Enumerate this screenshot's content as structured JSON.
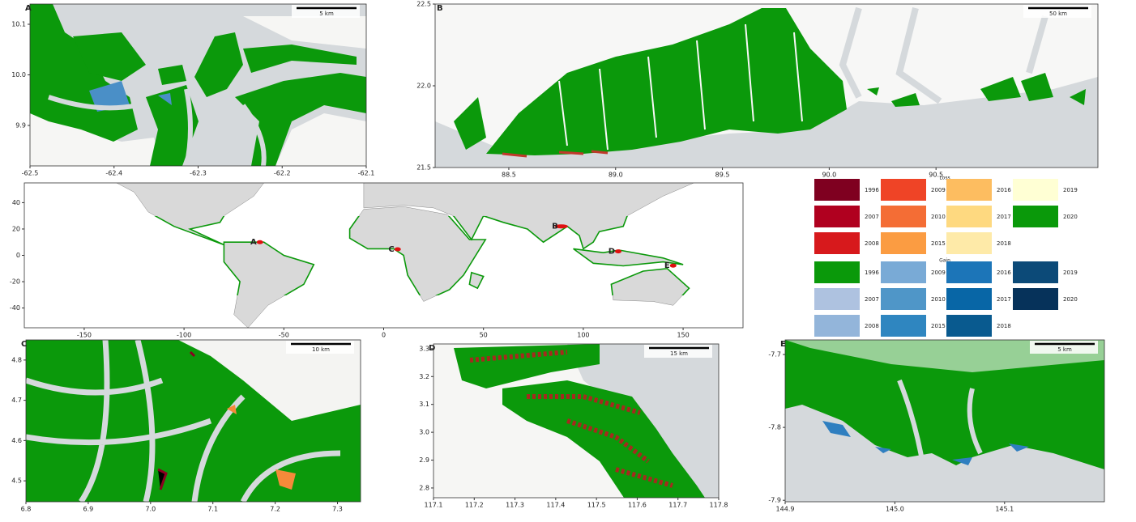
{
  "panels": [
    {
      "label": "A",
      "scale_bar": "5 km",
      "xlim": [
        -62.5,
        -62.1
      ],
      "ylim": [
        9.82,
        10.14
      ],
      "xticks": [
        -62.5,
        -62.4,
        -62.3,
        -62.2,
        -62.1
      ],
      "yticks": [
        10.1,
        {
          "value": 10.0,
          "label": "10.0"
        },
        9.9
      ]
    },
    {
      "label": "B",
      "scale_bar": "50 km",
      "xlim": [
        88.155,
        91.258
      ],
      "ylim": [
        21.5,
        22.5
      ],
      "xticks": [
        88.5,
        {
          "value": 89.0,
          "label": "89.0"
        },
        89.5,
        {
          "value": 90.0,
          "label": "90.0"
        },
        90.5
      ],
      "yticks": [
        22.5,
        {
          "value": 22.0,
          "label": "22.0"
        },
        21.5
      ]
    },
    {
      "label": "C",
      "scale_bar": "10 km",
      "xlim": [
        6.8,
        7.337
      ],
      "ylim": [
        4.448,
        4.85
      ],
      "xticks": [
        6.8,
        6.9,
        {
          "value": 7.0,
          "label": "7.0"
        },
        7.1,
        7.2,
        7.3
      ],
      "yticks": [
        4.8,
        4.7,
        4.6,
        4.5
      ]
    },
    {
      "label": "D",
      "scale_bar": "15 km",
      "xlim": [
        117.1,
        117.8
      ],
      "ylim": [
        2.765,
        3.317
      ],
      "xticks": [
        117.1,
        117.2,
        117.3,
        117.4,
        117.5,
        117.6,
        117.7,
        117.8
      ],
      "yticks": [
        3.3,
        3.2,
        3.1,
        {
          "value": 3.0,
          "label": "3.0"
        },
        2.9,
        2.8
      ]
    },
    {
      "label": "E",
      "scale_bar": "5 km",
      "xlim": [
        144.9,
        145.191
      ],
      "ylim": [
        -7.902,
        -7.68
      ],
      "xticks": [
        144.9,
        {
          "value": 145.0,
          "label": "145.0"
        },
        145.1
      ],
      "yticks": [
        -7.7,
        -7.8,
        -7.9
      ]
    }
  ],
  "world": {
    "xlim": [
      -180,
      180
    ],
    "ylim": [
      -55,
      55
    ],
    "xticks": [
      -150,
      -100,
      -50,
      0,
      50,
      100,
      150
    ],
    "yticks": [
      40,
      20,
      0,
      -20,
      -40
    ],
    "markers": [
      "A",
      "B",
      "C",
      "D",
      "E"
    ]
  },
  "legend": {
    "loss": {
      "title": "Loss",
      "items": [
        {
          "year": 1996,
          "color": "#7f0020"
        },
        {
          "year": 2007,
          "color": "#b0001f"
        },
        {
          "year": 2008,
          "color": "#d7191c"
        },
        {
          "year": 2009,
          "color": "#ef4426"
        },
        {
          "year": 2010,
          "color": "#f46d35"
        },
        {
          "year": 2015,
          "color": "#fb9c42"
        },
        {
          "year": 2016,
          "color": "#fdbd60"
        },
        {
          "year": 2017,
          "color": "#fed980"
        },
        {
          "year": 2018,
          "color": "#feeaa8"
        },
        {
          "year": 2019,
          "color": "#ffffd4"
        },
        {
          "year": 2020,
          "color": "#0a990a"
        }
      ]
    },
    "gain": {
      "title": "Gain",
      "items": [
        {
          "year": 1996,
          "color": "#0a990a"
        },
        {
          "year": 2007,
          "color": "#aec2e0"
        },
        {
          "year": 2008,
          "color": "#93b5da"
        },
        {
          "year": 2009,
          "color": "#79aad6"
        },
        {
          "year": 2010,
          "color": "#4f96c8"
        },
        {
          "year": 2015,
          "color": "#2f86c0"
        },
        {
          "year": 2016,
          "color": "#1c75b8"
        },
        {
          "year": 2017,
          "color": "#0866a6"
        },
        {
          "year": 2018,
          "color": "#095a8f"
        },
        {
          "year": 2019,
          "color": "#0c4a78"
        },
        {
          "year": 2020,
          "color": "#06325a"
        }
      ]
    }
  }
}
